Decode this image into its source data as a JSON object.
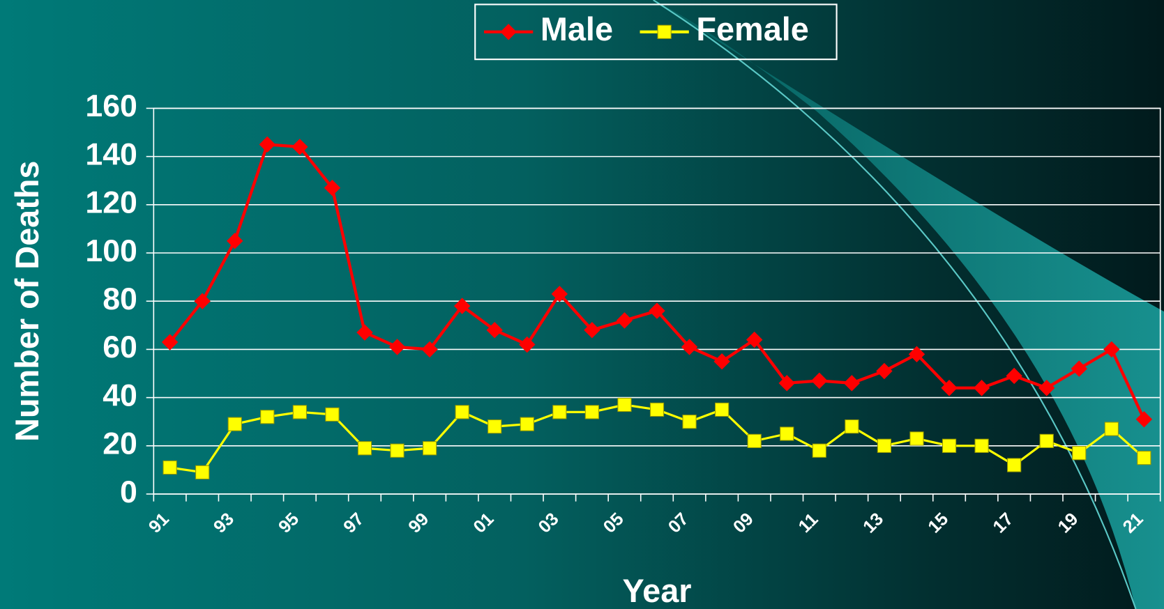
{
  "chart_data": {
    "type": "line",
    "y_label": "Number of Deaths",
    "x_label": "Year",
    "categories": [
      "91",
      null,
      "93",
      null,
      "95",
      null,
      "97",
      null,
      "99",
      null,
      "01",
      null,
      "03",
      null,
      "05",
      null,
      "07",
      null,
      "09",
      null,
      "11",
      null,
      "13",
      null,
      "15",
      null,
      "17",
      null,
      "19",
      null,
      "21"
    ],
    "series": [
      {
        "name": "Male",
        "color": "#ff0000",
        "marker": "diamond",
        "values": [
          63,
          80,
          105,
          145,
          144,
          127,
          67,
          61,
          60,
          78,
          68,
          62,
          83,
          68,
          72,
          76,
          61,
          55,
          64,
          46,
          47,
          46,
          51,
          58,
          44,
          44,
          49,
          44,
          52,
          60,
          31
        ]
      },
      {
        "name": "Female",
        "color": "#ffff00",
        "marker": "square",
        "values": [
          11,
          9,
          29,
          32,
          34,
          33,
          19,
          18,
          19,
          34,
          28,
          29,
          34,
          34,
          37,
          35,
          30,
          35,
          22,
          25,
          18,
          28,
          20,
          23,
          20,
          20,
          12,
          22,
          17,
          27,
          15
        ]
      }
    ],
    "ylim": [
      0,
      160
    ],
    "yticks": [
      0,
      20,
      40,
      60,
      80,
      100,
      120,
      140,
      160
    ],
    "grid": true,
    "legend": "top"
  }
}
